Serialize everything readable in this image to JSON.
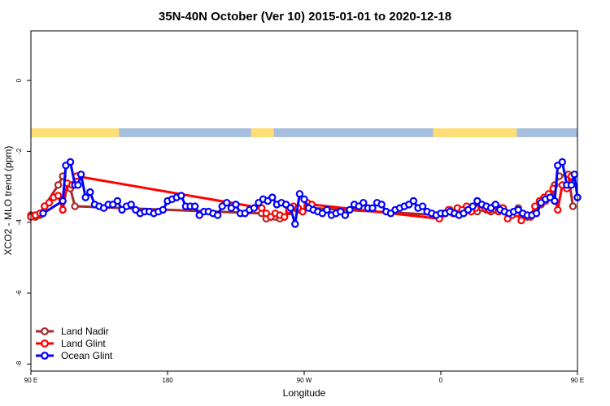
{
  "chart_data": {
    "type": "line",
    "title": "35N-40N October (Ver 10)   2015-01-01 to 2020-12-18",
    "xlabel": "Longitude",
    "ylabel": "XCO2 - MLO trend (ppm)",
    "xlim": [
      90,
      450
    ],
    "ylim": [
      -8.2,
      1.4
    ],
    "x_ticks": [
      {
        "value": 90,
        "label": "90 E"
      },
      {
        "value": 180,
        "label": "180"
      },
      {
        "value": 270,
        "label": "90 W"
      },
      {
        "value": 360,
        "label": "0"
      },
      {
        "value": 450,
        "label": "90 E"
      },
      {
        "value": 540,
        "label": "180"
      }
    ],
    "y_ticks": [
      {
        "value": 0,
        "label": "0"
      },
      {
        "value": -2,
        "label": "-2"
      },
      {
        "value": -4,
        "label": "-4"
      },
      {
        "value": -6,
        "label": "-6"
      },
      {
        "value": -8,
        "label": "-8"
      }
    ],
    "grid": false,
    "legend_position": "bottom-left",
    "land_ocean_strip": {
      "y_range": [
        -1.6,
        -1.35
      ],
      "land_color": "#ffdd77",
      "ocean_color": "#a8c0e0",
      "land_segments": [
        [
          90,
          148
        ],
        [
          235,
          250
        ],
        [
          355,
          410
        ],
        [
          450,
          508
        ]
      ]
    },
    "series": [
      {
        "name": "Land Nadir",
        "color": "#a52a2a",
        "points": [
          [
            90,
            -3.8
          ],
          [
            93,
            -3.85
          ],
          [
            96,
            -3.8
          ],
          [
            99,
            -3.55
          ],
          [
            108,
            -2.95
          ],
          [
            111,
            -2.7
          ],
          [
            116,
            -3.05
          ],
          [
            119,
            -3.55
          ],
          [
            242,
            -3.75
          ],
          [
            245,
            -3.9
          ],
          [
            248,
            -3.85
          ],
          [
            251,
            -3.85
          ],
          [
            254,
            -3.9
          ],
          [
            257,
            -3.85
          ],
          [
            260,
            -3.7
          ],
          [
            263,
            -3.6
          ],
          [
            266,
            -3.65
          ],
          [
            269,
            -3.7
          ],
          [
            272,
            -3.55
          ],
          [
            275,
            -3.6
          ],
          [
            360,
            -3.8
          ],
          [
            363,
            -3.75
          ],
          [
            366,
            -3.65
          ],
          [
            372,
            -3.7
          ],
          [
            375,
            -3.65
          ],
          [
            378,
            -3.6
          ],
          [
            381,
            -3.65
          ],
          [
            384,
            -3.7
          ],
          [
            387,
            -3.6
          ],
          [
            390,
            -3.65
          ],
          [
            393,
            -3.7
          ],
          [
            396,
            -3.65
          ],
          [
            399,
            -3.6
          ],
          [
            402,
            -3.7
          ],
          [
            405,
            -3.8
          ],
          [
            408,
            -3.75
          ],
          [
            411,
            -3.6
          ],
          [
            414,
            -3.75
          ],
          [
            417,
            -3.85
          ],
          [
            420,
            -3.8
          ],
          [
            423,
            -3.6
          ],
          [
            426,
            -3.5
          ],
          [
            429,
            -3.4
          ],
          [
            432,
            -3.25
          ],
          [
            435,
            -2.95
          ],
          [
            438,
            -2.7
          ],
          [
            444,
            -2.65
          ],
          [
            447,
            -3.55
          ]
        ]
      },
      {
        "name": "Land Glint",
        "color": "#ff0000",
        "points": [
          [
            90,
            -3.85
          ],
          [
            93,
            -3.8
          ],
          [
            96,
            -3.75
          ],
          [
            99,
            -3.55
          ],
          [
            102,
            -3.45
          ],
          [
            105,
            -3.3
          ],
          [
            108,
            -3.25
          ],
          [
            111,
            -3.65
          ],
          [
            114,
            -2.9
          ],
          [
            117,
            -2.95
          ],
          [
            120,
            -2.7
          ],
          [
            242,
            -3.6
          ],
          [
            245,
            -3.75
          ],
          [
            248,
            -3.85
          ],
          [
            251,
            -3.75
          ],
          [
            254,
            -3.8
          ],
          [
            257,
            -3.85
          ],
          [
            260,
            -3.65
          ],
          [
            263,
            -3.55
          ],
          [
            266,
            -3.6
          ],
          [
            269,
            -3.7
          ],
          [
            272,
            -3.45
          ],
          [
            275,
            -3.5
          ],
          [
            359,
            -3.9
          ],
          [
            362,
            -3.75
          ],
          [
            365,
            -3.65
          ],
          [
            368,
            -3.75
          ],
          [
            371,
            -3.6
          ],
          [
            374,
            -3.65
          ],
          [
            377,
            -3.55
          ],
          [
            380,
            -3.7
          ],
          [
            383,
            -3.6
          ],
          [
            386,
            -3.5
          ],
          [
            389,
            -3.6
          ],
          [
            392,
            -3.65
          ],
          [
            395,
            -3.55
          ],
          [
            398,
            -3.7
          ],
          [
            401,
            -3.6
          ],
          [
            404,
            -3.9
          ],
          [
            407,
            -3.8
          ],
          [
            410,
            -3.75
          ],
          [
            413,
            -3.95
          ],
          [
            416,
            -3.8
          ],
          [
            419,
            -3.85
          ],
          [
            422,
            -3.55
          ],
          [
            425,
            -3.4
          ],
          [
            428,
            -3.3
          ],
          [
            431,
            -3.2
          ],
          [
            434,
            -3.05
          ],
          [
            437,
            -3.65
          ],
          [
            440,
            -2.95
          ],
          [
            443,
            -3.05
          ],
          [
            446,
            -2.7
          ]
        ]
      },
      {
        "name": "Ocean Glint",
        "color": "#0000ff",
        "points": [
          [
            98,
            -3.75
          ],
          [
            111,
            -3.4
          ],
          [
            113,
            -2.4
          ],
          [
            116,
            -2.3
          ],
          [
            119,
            -2.95
          ],
          [
            121,
            -2.95
          ],
          [
            123,
            -2.65
          ],
          [
            126,
            -3.3
          ],
          [
            129,
            -3.15
          ],
          [
            132,
            -3.5
          ],
          [
            135,
            -3.55
          ],
          [
            138,
            -3.6
          ],
          [
            141,
            -3.5
          ],
          [
            144,
            -3.5
          ],
          [
            147,
            -3.4
          ],
          [
            150,
            -3.65
          ],
          [
            153,
            -3.55
          ],
          [
            156,
            -3.5
          ],
          [
            159,
            -3.65
          ],
          [
            162,
            -3.75
          ],
          [
            165,
            -3.7
          ],
          [
            168,
            -3.7
          ],
          [
            171,
            -3.75
          ],
          [
            174,
            -3.7
          ],
          [
            177,
            -3.65
          ],
          [
            180,
            -3.4
          ],
          [
            183,
            -3.35
          ],
          [
            186,
            -3.3
          ],
          [
            189,
            -3.25
          ],
          [
            192,
            -3.55
          ],
          [
            195,
            -3.55
          ],
          [
            198,
            -3.55
          ],
          [
            201,
            -3.8
          ],
          [
            204,
            -3.7
          ],
          [
            207,
            -3.7
          ],
          [
            210,
            -3.75
          ],
          [
            213,
            -3.8
          ],
          [
            216,
            -3.55
          ],
          [
            219,
            -3.45
          ],
          [
            222,
            -3.6
          ],
          [
            225,
            -3.5
          ],
          [
            228,
            -3.75
          ],
          [
            231,
            -3.75
          ],
          [
            234,
            -3.65
          ],
          [
            237,
            -3.6
          ],
          [
            240,
            -3.45
          ],
          [
            243,
            -3.35
          ],
          [
            246,
            -3.4
          ],
          [
            249,
            -3.3
          ],
          [
            252,
            -3.5
          ],
          [
            255,
            -3.45
          ],
          [
            258,
            -3.5
          ],
          [
            261,
            -3.6
          ],
          [
            264,
            -4.05
          ],
          [
            267,
            -3.2
          ],
          [
            270,
            -3.35
          ],
          [
            273,
            -3.6
          ],
          [
            276,
            -3.65
          ],
          [
            279,
            -3.7
          ],
          [
            282,
            -3.75
          ],
          [
            285,
            -3.65
          ],
          [
            288,
            -3.8
          ],
          [
            291,
            -3.75
          ],
          [
            294,
            -3.7
          ],
          [
            297,
            -3.8
          ],
          [
            300,
            -3.65
          ],
          [
            303,
            -3.5
          ],
          [
            306,
            -3.55
          ],
          [
            309,
            -3.45
          ],
          [
            312,
            -3.6
          ],
          [
            315,
            -3.6
          ],
          [
            318,
            -3.45
          ],
          [
            321,
            -3.5
          ],
          [
            324,
            -3.7
          ],
          [
            327,
            -3.75
          ],
          [
            330,
            -3.65
          ],
          [
            333,
            -3.6
          ],
          [
            336,
            -3.55
          ],
          [
            339,
            -3.5
          ],
          [
            342,
            -3.4
          ],
          [
            345,
            -3.6
          ],
          [
            348,
            -3.55
          ],
          [
            351,
            -3.7
          ],
          [
            354,
            -3.75
          ],
          [
            357,
            -3.8
          ],
          [
            360,
            -3.75
          ],
          [
            363,
            -3.75
          ],
          [
            366,
            -3.7
          ],
          [
            369,
            -3.75
          ],
          [
            372,
            -3.8
          ],
          [
            375,
            -3.75
          ],
          [
            378,
            -3.65
          ],
          [
            381,
            -3.55
          ],
          [
            384,
            -3.4
          ],
          [
            387,
            -3.5
          ],
          [
            390,
            -3.55
          ],
          [
            393,
            -3.6
          ],
          [
            396,
            -3.5
          ],
          [
            399,
            -3.65
          ],
          [
            402,
            -3.7
          ],
          [
            405,
            -3.75
          ],
          [
            408,
            -3.7
          ],
          [
            411,
            -3.65
          ],
          [
            414,
            -3.75
          ],
          [
            417,
            -3.8
          ],
          [
            420,
            -3.8
          ],
          [
            423,
            -3.75
          ],
          [
            426,
            -3.45
          ],
          [
            429,
            -3.35
          ],
          [
            432,
            -3.3
          ],
          [
            435,
            -3.4
          ],
          [
            437,
            -2.4
          ],
          [
            440,
            -2.3
          ],
          [
            443,
            -2.95
          ],
          [
            446,
            -2.95
          ],
          [
            448,
            -2.65
          ],
          [
            450,
            -3.3
          ]
        ]
      }
    ]
  }
}
